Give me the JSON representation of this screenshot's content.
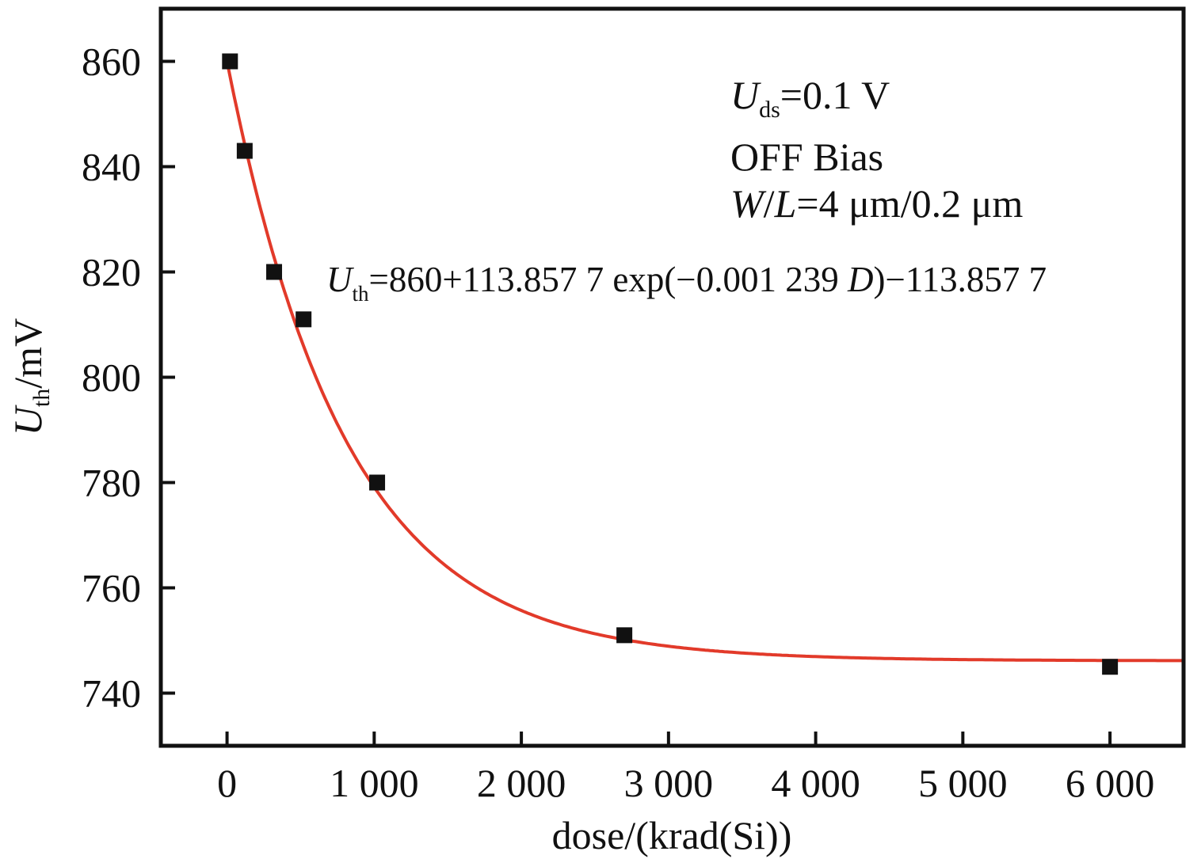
{
  "chart_data": {
    "type": "scatter",
    "xlabel": "dose/(krad(Si))",
    "ylabel": {
      "main": "U",
      "sub": "th",
      "rest": "/mV"
    },
    "xlim": [
      -450,
      6500
    ],
    "ylim": [
      730,
      870
    ],
    "x_ticks": [
      0,
      1000,
      2000,
      3000,
      4000,
      5000,
      6000
    ],
    "x_tick_labels": [
      "0",
      "1 000",
      "2 000",
      "3 000",
      "4 000",
      "5 000",
      "6 000"
    ],
    "y_ticks": [
      740,
      760,
      780,
      800,
      820,
      840,
      860
    ],
    "y_tick_labels": [
      "740",
      "760",
      "780",
      "800",
      "820",
      "840",
      "860"
    ],
    "grid": false,
    "series": [
      {
        "marker": "square",
        "color": "#111111",
        "points": [
          {
            "x": 20,
            "y": 860
          },
          {
            "x": 120,
            "y": 843
          },
          {
            "x": 320,
            "y": 820
          },
          {
            "x": 520,
            "y": 811
          },
          {
            "x": 1020,
            "y": 780
          },
          {
            "x": 2700,
            "y": 751
          },
          {
            "x": 6000,
            "y": 745
          }
        ]
      }
    ],
    "fit": {
      "color": "#e23a2a",
      "model": "exp_decay",
      "y0": 860,
      "amplitude": 113.8577,
      "rate": 0.001239,
      "x_from": 0,
      "x_to": 6500
    },
    "annotations": {
      "conditions": [
        {
          "main": "U",
          "sub": "ds",
          "rest": "=0.1 V"
        },
        {
          "rest": "OFF Bias"
        },
        {
          "italic1": "W",
          "mid": "/",
          "italic2": "L",
          "rest": "=4 μm/0.2 μm"
        }
      ],
      "equation": {
        "main": "U",
        "sub": "th",
        "part1": "=860+113.857 7 exp(−0.001 239 ",
        "var": "D",
        "part2": ")−113.857 7"
      }
    }
  }
}
